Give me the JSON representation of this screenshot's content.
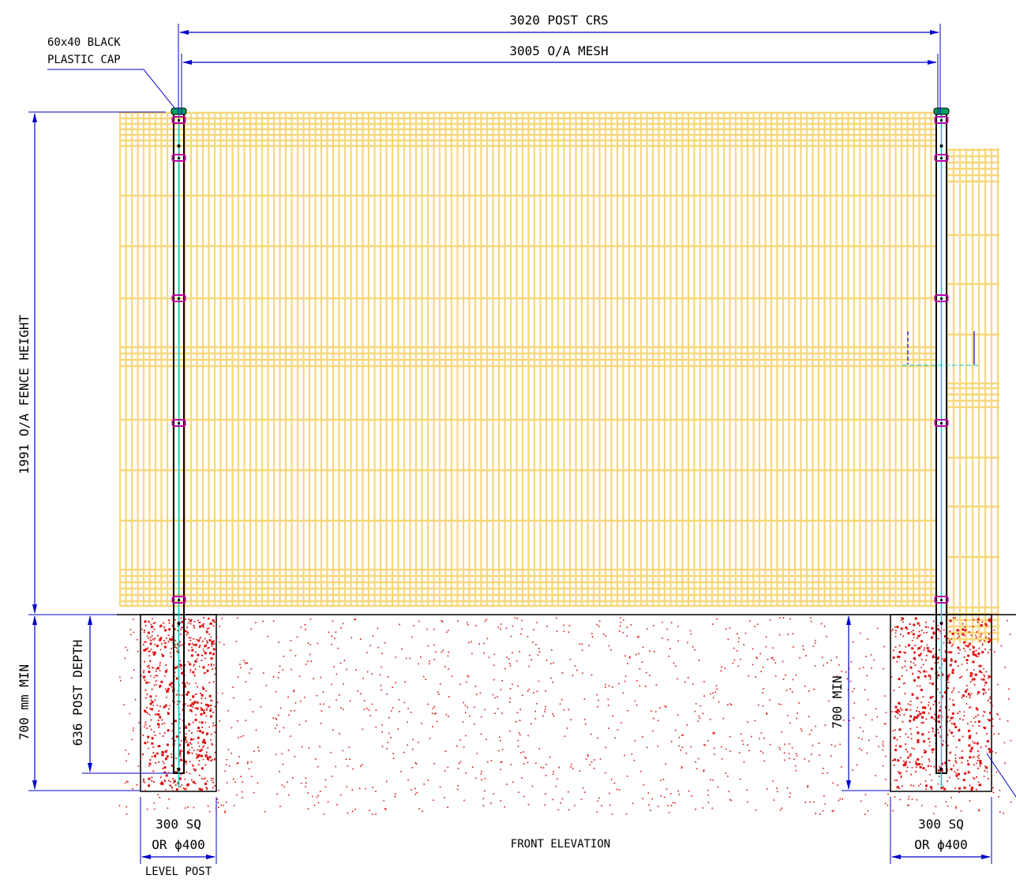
{
  "drawing": {
    "title": "FRONT ELEVATION",
    "post_footnote": "LEVEL POST"
  },
  "dimensions": {
    "post_centres": "3020 POST CRS",
    "mesh_overall": "3005 O/A MESH",
    "fence_height": "1991 O/A FENCE HEIGHT",
    "post_depth": "636 POST DEPTH",
    "embed_min_left": "700 mm MIN",
    "embed_min_right": "700 MIN"
  },
  "annotations": {
    "cap_line1": "60x40 BLACK",
    "cap_line2": "PLASTIC CAP"
  },
  "footings": {
    "left": {
      "line1": "300 SQ",
      "line2": "OR ϕ400"
    },
    "right": {
      "line1": "300 SQ",
      "line2": "OR ϕ400"
    }
  },
  "colors": {
    "mesh": "#f7d77a",
    "dimension": "#0000cc",
    "concrete_dots": "#e01010",
    "post": "#000000",
    "post_center": "#00c8c8",
    "clip": "#c000a0"
  }
}
